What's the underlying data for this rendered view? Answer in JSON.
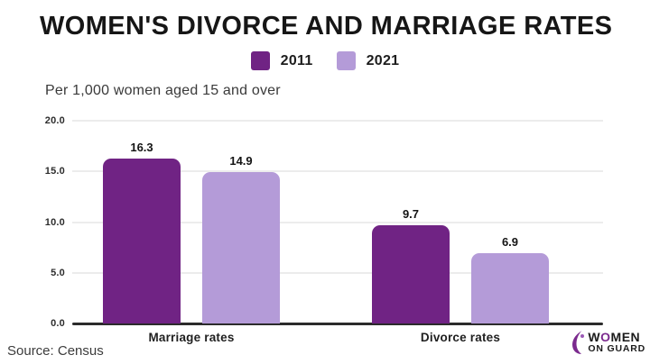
{
  "title": "WOMEN'S DIVORCE AND MARRIAGE RATES",
  "subtitle": "Per 1,000 women aged 15 and over",
  "source": "Source: Census",
  "legend": [
    {
      "label": "2011",
      "color": "#702384"
    },
    {
      "label": "2021",
      "color": "#b49bd8"
    }
  ],
  "colors": {
    "series_2011": "#702384",
    "series_2021": "#b49bd8",
    "gridline": "#ececec",
    "axis_line": "#2b2b2b",
    "accent": "#7b2a8e"
  },
  "logo": {
    "line1_pre": "W",
    "line1_o": "O",
    "line1_post": "MEN",
    "line2": "ON GUARD"
  },
  "chart_data": {
    "type": "bar",
    "categories": [
      "Marriage rates",
      "Divorce rates"
    ],
    "series": [
      {
        "name": "2011",
        "color": "#702384",
        "values": [
          16.3,
          9.7
        ]
      },
      {
        "name": "2021",
        "color": "#b49bd8",
        "values": [
          14.9,
          6.9
        ]
      }
    ],
    "title": "WOMEN'S DIVORCE AND MARRIAGE RATES",
    "subtitle": "Per 1,000 women aged 15 and over",
    "xlabel": "",
    "ylabel": "Per 1,000 women aged 15 and over",
    "ylim": [
      0,
      20
    ],
    "yticks": [
      "20.0",
      "15.0",
      "10.0",
      "5.0",
      "0.0"
    ],
    "grid": true,
    "legend_position": "top-center",
    "data_labels": true
  }
}
